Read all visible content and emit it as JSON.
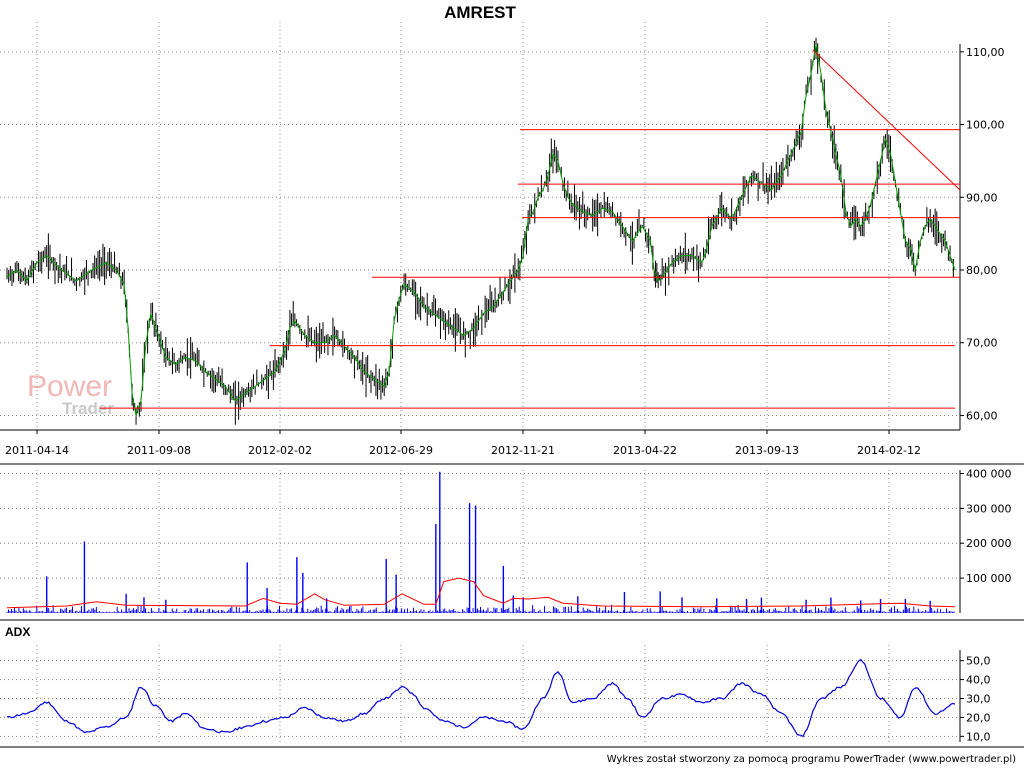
{
  "chart_data": [
    {
      "type": "candlestick",
      "title": "AMREST",
      "x_ticks": [
        "2011-04-14",
        "2011-09-08",
        "2012-02-02",
        "2012-06-29",
        "2012-11-21",
        "2013-04-22",
        "2013-09-13",
        "2014-02-12"
      ],
      "y_ticks": [
        "60,00",
        "70,00",
        "80,00",
        "90,00",
        "100,00",
        "110,00"
      ],
      "ylim": [
        58,
        113
      ],
      "grid": true,
      "series": [
        {
          "color": "#000000",
          "x": [
            0,
            10,
            20,
            30,
            40,
            55,
            70,
            85,
            100,
            110,
            118,
            122,
            126,
            130,
            135,
            140,
            145,
            150,
            155,
            160,
            170,
            180,
            190,
            200,
            210,
            220,
            230,
            240,
            250,
            260,
            270,
            280,
            285,
            290,
            295,
            300,
            310,
            320,
            330,
            340,
            350,
            360,
            370,
            380,
            385,
            390,
            395,
            400,
            410,
            420,
            430,
            440,
            450,
            460,
            470,
            480,
            490,
            500,
            510,
            515,
            520,
            525,
            530,
            535,
            540,
            545,
            550,
            555,
            560,
            565,
            570,
            580,
            590,
            600,
            610,
            620,
            630,
            640,
            648,
            652,
            656,
            660,
            665,
            670,
            680,
            690,
            700,
            705,
            710,
            720,
            730,
            740,
            750,
            760,
            770,
            780,
            790,
            800,
            805,
            810,
            815,
            820,
            825,
            830,
            835,
            840,
            845,
            850,
            855,
            860,
            865,
            870,
            875,
            880,
            885,
            890,
            895,
            900,
            905,
            910,
            915,
            920,
            925,
            930,
            935,
            940,
            945,
            950,
            955
          ],
          "values": [
            79,
            80,
            78.5,
            81,
            82,
            80,
            78.5,
            80,
            81,
            80,
            78,
            72,
            63,
            60,
            62,
            70,
            74,
            72,
            70,
            68,
            67,
            68,
            67.5,
            66,
            65,
            64,
            62,
            63,
            64,
            65,
            66,
            69,
            72,
            73,
            72,
            71,
            70,
            70,
            71,
            69.5,
            68,
            66,
            65,
            64,
            66,
            73,
            76,
            78,
            77,
            75,
            74,
            73,
            72,
            71,
            72,
            74,
            75,
            77,
            79,
            80,
            82,
            87,
            88,
            90,
            91,
            93,
            96,
            95,
            92,
            90,
            89,
            88,
            87.5,
            88.5,
            88,
            86,
            84,
            86,
            84,
            80,
            78.5,
            79,
            80,
            81,
            82,
            82,
            81,
            83,
            86,
            88.5,
            87,
            90,
            93,
            92,
            91,
            93,
            96,
            99,
            104,
            107,
            111,
            107,
            102,
            99,
            96,
            93,
            88,
            86,
            87,
            86,
            87,
            89,
            92,
            95,
            98,
            96,
            92,
            88,
            84,
            83,
            80,
            84,
            86,
            87,
            86,
            85,
            84,
            82,
            80
          ]
        }
      ]
    },
    {
      "type": "bar",
      "y_ticks": [
        "100 000",
        "200 000",
        "300 000",
        "400 000"
      ],
      "ylim": [
        0,
        410000
      ],
      "grid": true,
      "series": [
        {
          "color": "#0000ff",
          "x": [
            40,
            78,
            120,
            138,
            160,
            242,
            262,
            292,
            298,
            322,
            382,
            392,
            432,
            436,
            466,
            472,
            500,
            510,
            520,
            575,
            622,
            658,
            680,
            715,
            745,
            760,
            805,
            830,
            860,
            880,
            905,
            930
          ],
          "values": [
            105000,
            205000,
            55000,
            45000,
            38000,
            145000,
            72000,
            160000,
            115000,
            42000,
            155000,
            110000,
            255000,
            405000,
            315000,
            308000,
            135000,
            50000,
            45000,
            48000,
            60000,
            62000,
            45000,
            42000,
            40000,
            44000,
            38000,
            44000,
            36000,
            40000,
            40000,
            35000
          ]
        },
        {
          "color": "#ff0000",
          "x": [
            0,
            60,
            90,
            120,
            240,
            258,
            275,
            292,
            310,
            320,
            340,
            380,
            398,
            420,
            432,
            440,
            455,
            470,
            480,
            500,
            510,
            525,
            545,
            560,
            600,
            700,
            800,
            860,
            900,
            930,
            955
          ],
          "values": [
            15000,
            20000,
            32000,
            22000,
            20000,
            42000,
            28000,
            25000,
            55000,
            38000,
            22000,
            25000,
            55000,
            25000,
            25000,
            90000,
            100000,
            90000,
            50000,
            28000,
            42000,
            40000,
            45000,
            28000,
            20000,
            18000,
            20000,
            25000,
            28000,
            20000,
            18000
          ]
        }
      ]
    },
    {
      "type": "line",
      "title": "ADX",
      "y_ticks": [
        "10,0",
        "20,0",
        "30,0",
        "40,0",
        "50,0"
      ],
      "ylim": [
        7,
        53
      ],
      "grid": true,
      "series": [
        {
          "color": "#0000ff",
          "x": [
            0,
            20,
            40,
            60,
            80,
            100,
            120,
            135,
            150,
            165,
            180,
            200,
            220,
            240,
            260,
            280,
            300,
            320,
            340,
            360,
            380,
            400,
            410,
            420,
            440,
            460,
            480,
            500,
            520,
            540,
            555,
            570,
            590,
            610,
            625,
            640,
            660,
            680,
            700,
            720,
            740,
            760,
            780,
            800,
            820,
            840,
            860,
            880,
            900,
            915,
            935,
            955
          ],
          "values": [
            20,
            22,
            28,
            18,
            12,
            15,
            20,
            36,
            26,
            18,
            22,
            14,
            12,
            15,
            18,
            20,
            25,
            20,
            18,
            22,
            30,
            36,
            32,
            25,
            18,
            15,
            20,
            18,
            14,
            30,
            44,
            28,
            30,
            38,
            30,
            20,
            30,
            32,
            28,
            30,
            38,
            32,
            22,
            10,
            30,
            36,
            50,
            30,
            20,
            36,
            22,
            27
          ]
        }
      ]
    }
  ],
  "footer": "Wykres został stworzony za pomocą programu PowerTrader (www.powertrader.pl)",
  "watermark": {
    "line1": "Power",
    "line2": "Trader"
  }
}
